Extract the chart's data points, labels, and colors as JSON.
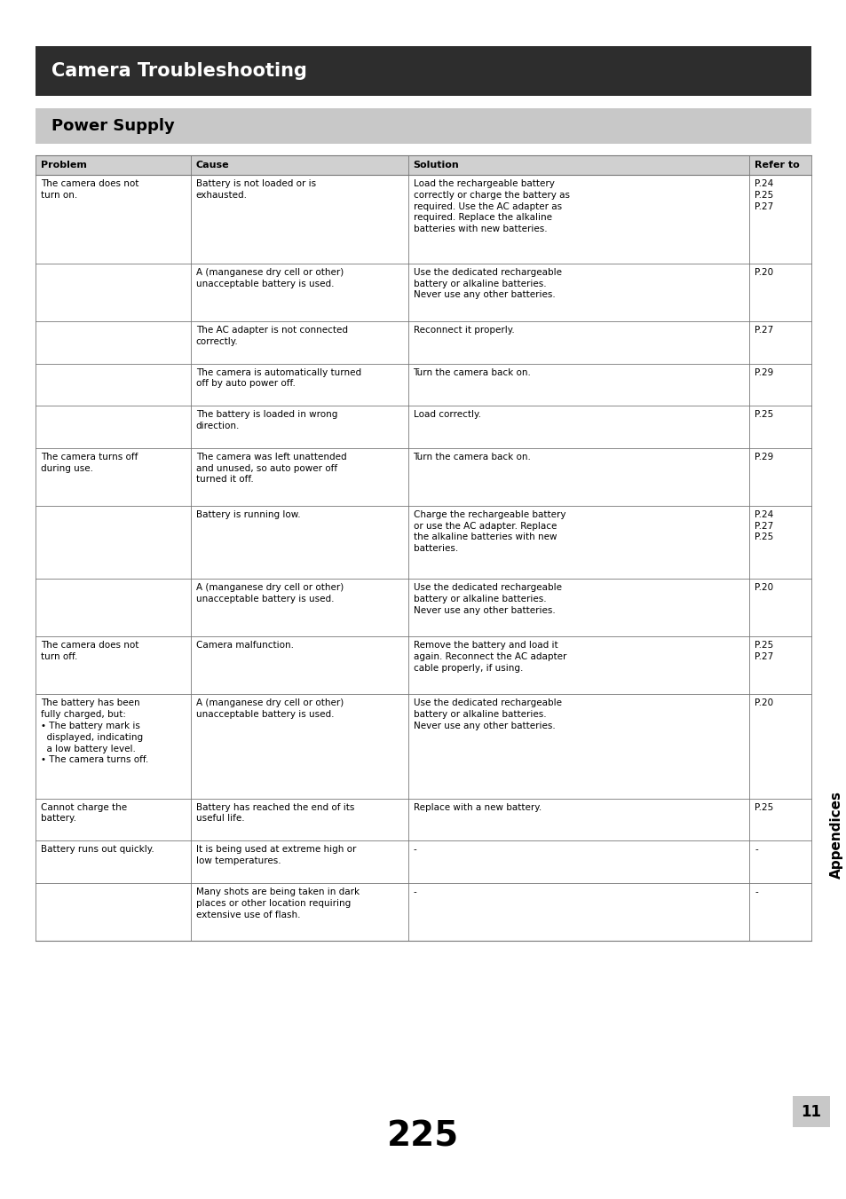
{
  "page_bg": "#ffffff",
  "title_bar_color": "#2d2d2d",
  "title_text": "Camera Troubleshooting",
  "title_text_color": "#ffffff",
  "subtitle_bar_color": "#c8c8c8",
  "subtitle_text": "Power Supply",
  "subtitle_text_color": "#000000",
  "header_bg": "#d0d0d0",
  "col_headers": [
    "Problem",
    "Cause",
    "Solution",
    "Refer to"
  ],
  "col_props": [
    0.2,
    0.28,
    0.44,
    0.08
  ],
  "table_rows": [
    {
      "problem": "The camera does not\nturn on.",
      "cause": "Battery is not loaded or is\nexhausted.",
      "solution": "Load the rechargeable battery\ncorrectly or charge the battery as\nrequired. Use the AC adapter as\nrequired. Replace the alkaline\nbatteries with new batteries.",
      "refer": "P.24\nP.25\nP.27",
      "row_group": "1"
    },
    {
      "problem": "",
      "cause": "A (manganese dry cell or other)\nunacceptable battery is used.",
      "solution": "Use the dedicated rechargeable\nbattery or alkaline batteries.\nNever use any other batteries.",
      "refer": "P.20",
      "row_group": "1"
    },
    {
      "problem": "",
      "cause": "The AC adapter is not connected\ncorrectly.",
      "solution": "Reconnect it properly.",
      "refer": "P.27",
      "row_group": "1"
    },
    {
      "problem": "",
      "cause": "The camera is automatically turned\noff by auto power off.",
      "solution": "Turn the camera back on.",
      "refer": "P.29",
      "row_group": "1"
    },
    {
      "problem": "",
      "cause": "The battery is loaded in wrong\ndirection.",
      "solution": "Load correctly.",
      "refer": "P.25",
      "row_group": "1"
    },
    {
      "problem": "The camera turns off\nduring use.",
      "cause": "The camera was left unattended\nand unused, so auto power off\nturned it off.",
      "solution": "Turn the camera back on.",
      "refer": "P.29",
      "row_group": "2"
    },
    {
      "problem": "",
      "cause": "Battery is running low.",
      "solution": "Charge the rechargeable battery\nor use the AC adapter. Replace\nthe alkaline batteries with new\nbatteries.",
      "refer": "P.24\nP.27\nP.25",
      "row_group": "2"
    },
    {
      "problem": "",
      "cause": "A (manganese dry cell or other)\nunacceptable battery is used.",
      "solution": "Use the dedicated rechargeable\nbattery or alkaline batteries.\nNever use any other batteries.",
      "refer": "P.20",
      "row_group": "2"
    },
    {
      "problem": "The camera does not\nturn off.",
      "cause": "Camera malfunction.",
      "solution": "Remove the battery and load it\nagain. Reconnect the AC adapter\ncable properly, if using.",
      "refer": "P.25\nP.27",
      "row_group": "3"
    },
    {
      "problem": "The battery has been\nfully charged, but:\n• The battery mark is\n  displayed, indicating\n  a low battery level.\n• The camera turns off.",
      "cause": "A (manganese dry cell or other)\nunacceptable battery is used.",
      "solution": "Use the dedicated rechargeable\nbattery or alkaline batteries.\nNever use any other batteries.",
      "refer": "P.20",
      "row_group": "4"
    },
    {
      "problem": "Cannot charge the\nbattery.",
      "cause": "Battery has reached the end of its\nuseful life.",
      "solution": "Replace with a new battery.",
      "refer": "P.25",
      "row_group": "5"
    },
    {
      "problem": "Battery runs out quickly.",
      "cause": "It is being used at extreme high or\nlow temperatures.",
      "solution": "-",
      "refer": "-",
      "row_group": "6"
    },
    {
      "problem": "",
      "cause": "Many shots are being taken in dark\nplaces or other location requiring\nextensive use of flash.",
      "solution": "-",
      "refer": "-",
      "row_group": "6"
    }
  ],
  "side_label": "Appendices",
  "page_number": "225",
  "chapter_number": "11",
  "font_size_title": 15,
  "font_size_subtitle": 13,
  "font_size_header": 8,
  "font_size_body": 7.5,
  "font_size_page": 28,
  "font_size_chapter": 12
}
